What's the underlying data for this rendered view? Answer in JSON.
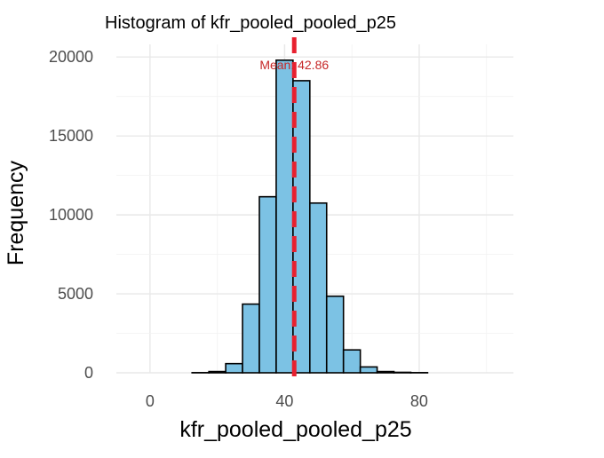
{
  "chart_data": {
    "type": "bar",
    "title": "Histogram of kfr_pooled_pooled_p25",
    "xlabel": "kfr_pooled_pooled_p25",
    "ylabel": "Frequency",
    "xlim": [
      -10,
      108
    ],
    "ylim": [
      0,
      20800
    ],
    "x_ticks": [
      0,
      40,
      80
    ],
    "y_ticks": [
      0,
      5000,
      10000,
      15000,
      20000
    ],
    "grid": true,
    "bin_width": 5,
    "bins": [
      {
        "x0": -7.5,
        "x1": -2.5,
        "value": 0
      },
      {
        "x0": -2.5,
        "x1": 2.5,
        "value": 0
      },
      {
        "x0": 2.5,
        "x1": 7.5,
        "value": 0
      },
      {
        "x0": 7.5,
        "x1": 12.5,
        "value": 0
      },
      {
        "x0": 12.5,
        "x1": 17.5,
        "value": 10
      },
      {
        "x0": 17.5,
        "x1": 22.5,
        "value": 80
      },
      {
        "x0": 22.5,
        "x1": 27.5,
        "value": 580
      },
      {
        "x0": 27.5,
        "x1": 32.5,
        "value": 4350
      },
      {
        "x0": 32.5,
        "x1": 37.5,
        "value": 11150
      },
      {
        "x0": 37.5,
        "x1": 42.5,
        "value": 19800
      },
      {
        "x0": 42.5,
        "x1": 47.5,
        "value": 18500
      },
      {
        "x0": 47.5,
        "x1": 52.5,
        "value": 10750
      },
      {
        "x0": 52.5,
        "x1": 57.5,
        "value": 4850
      },
      {
        "x0": 57.5,
        "x1": 62.5,
        "value": 1450
      },
      {
        "x0": 62.5,
        "x1": 67.5,
        "value": 370
      },
      {
        "x0": 67.5,
        "x1": 72.5,
        "value": 80
      },
      {
        "x0": 72.5,
        "x1": 77.5,
        "value": 30
      },
      {
        "x0": 77.5,
        "x1": 82.5,
        "value": 10
      },
      {
        "x0": 82.5,
        "x1": 87.5,
        "value": 0
      },
      {
        "x0": 87.5,
        "x1": 92.5,
        "value": 0
      },
      {
        "x0": 92.5,
        "x1": 97.5,
        "value": 0
      },
      {
        "x0": 97.5,
        "x1": 102.5,
        "value": 0
      },
      {
        "x0": 102.5,
        "x1": 107.5,
        "value": 0
      }
    ],
    "mean": 42.86,
    "mean_label": "Mean: 42.86",
    "colors": {
      "bar_fill": "#7cc2e4",
      "bar_stroke": "#000000",
      "mean_line": "#e8202f",
      "mean_label": "#c62828"
    }
  }
}
